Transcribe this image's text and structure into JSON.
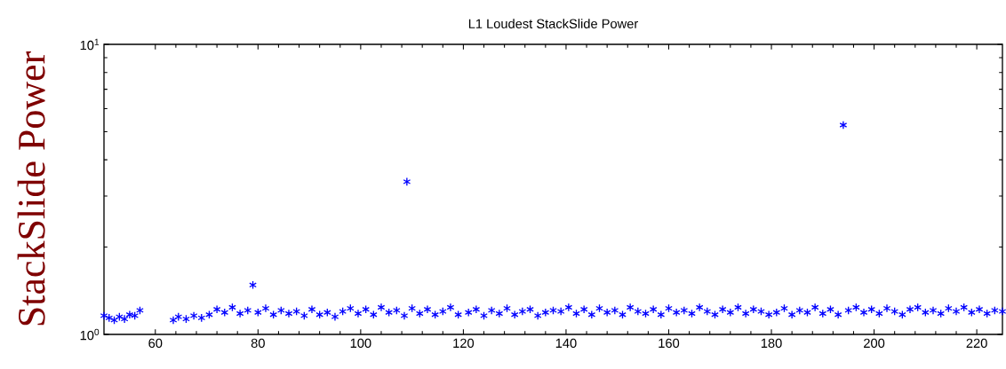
{
  "chart_data": {
    "type": "scatter",
    "title": "L1 Loudest StackSlide Power",
    "ylabel": "StackSlide Power",
    "log": "y",
    "marker": "cross",
    "xlim": [
      50,
      225
    ],
    "xticks": [
      60,
      80,
      100,
      120,
      140,
      160,
      180,
      200,
      220
    ],
    "ylim": [
      1,
      10
    ],
    "yticks": [
      {
        "value": 1,
        "label": "10$^{0}$"
      },
      {
        "value": 10,
        "label": "10$^{1}$"
      }
    ],
    "series": [
      {
        "color": "#0000ff",
        "x": [
          50,
          51,
          52,
          53,
          54,
          55,
          56,
          57,
          63.5,
          64.5,
          66,
          67.5,
          69,
          70.5,
          72,
          73.5,
          75,
          76.5,
          78,
          79,
          80,
          81.5,
          83,
          84.5,
          86,
          87.5,
          89,
          90.5,
          92,
          93.5,
          95,
          96.5,
          98,
          99.5,
          101,
          102.5,
          104,
          105.5,
          107,
          108.5,
          109,
          110,
          111.5,
          113,
          114.5,
          116,
          117.5,
          119,
          121,
          122.5,
          124,
          125.5,
          127,
          128.5,
          130,
          131.5,
          133,
          134.5,
          136,
          137.5,
          139,
          140.5,
          142,
          143.5,
          145,
          146.5,
          148,
          149.5,
          151,
          152.5,
          154,
          155.5,
          157,
          158.5,
          160,
          161.5,
          163,
          164.5,
          166,
          167.5,
          169,
          170.5,
          172,
          173.5,
          175,
          176.5,
          178,
          179.5,
          181,
          182.5,
          184,
          185.5,
          187,
          188.5,
          190,
          191.5,
          193,
          194,
          195,
          196.5,
          198,
          199.5,
          201,
          202.5,
          204,
          205.5,
          207,
          208.5,
          210,
          211.5,
          213,
          214.5,
          216,
          217.5,
          219,
          220.5,
          222,
          223.5,
          225
        ],
        "values": [
          1.16,
          1.14,
          1.12,
          1.15,
          1.13,
          1.17,
          1.16,
          1.21,
          1.12,
          1.15,
          1.13,
          1.16,
          1.14,
          1.17,
          1.22,
          1.19,
          1.24,
          1.18,
          1.21,
          1.48,
          1.19,
          1.23,
          1.17,
          1.21,
          1.18,
          1.2,
          1.16,
          1.22,
          1.17,
          1.19,
          1.15,
          1.2,
          1.23,
          1.18,
          1.22,
          1.17,
          1.24,
          1.19,
          1.21,
          1.16,
          3.36,
          1.23,
          1.18,
          1.22,
          1.17,
          1.2,
          1.24,
          1.17,
          1.19,
          1.22,
          1.16,
          1.21,
          1.18,
          1.23,
          1.17,
          1.2,
          1.22,
          1.16,
          1.19,
          1.21,
          1.2,
          1.24,
          1.18,
          1.22,
          1.17,
          1.23,
          1.19,
          1.21,
          1.17,
          1.24,
          1.2,
          1.18,
          1.22,
          1.17,
          1.23,
          1.19,
          1.21,
          1.18,
          1.24,
          1.2,
          1.17,
          1.22,
          1.19,
          1.24,
          1.18,
          1.22,
          1.2,
          1.17,
          1.19,
          1.23,
          1.17,
          1.21,
          1.19,
          1.24,
          1.18,
          1.22,
          1.17,
          5.27,
          1.21,
          1.24,
          1.19,
          1.22,
          1.18,
          1.23,
          1.2,
          1.17,
          1.22,
          1.24,
          1.19,
          1.21,
          1.18,
          1.23,
          1.2,
          1.24,
          1.19,
          1.22,
          1.18,
          1.21,
          1.2
        ]
      }
    ]
  }
}
